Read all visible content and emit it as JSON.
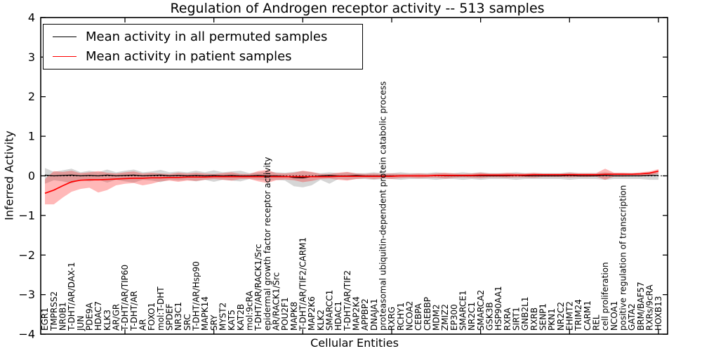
{
  "figure": {
    "title": "Regulation of Androgen receptor activity -- 513 samples",
    "xlabel": "Cellular Entities",
    "ylabel": "Inferred Activity"
  },
  "legend": {
    "position": "upper left",
    "entries": [
      {
        "label": "Mean activity in all permuted samples",
        "color": "#000000"
      },
      {
        "label": "Mean activity in patient samples",
        "color": "#ff0000"
      }
    ]
  },
  "chart_data": {
    "type": "line",
    "title": "Regulation of Androgen receptor activity -- 513 samples",
    "xlabel": "Cellular Entities",
    "ylabel": "Inferred Activity",
    "ylim": [
      -4,
      4
    ],
    "yticks": [
      -4,
      -3,
      -2,
      -1,
      0,
      1,
      2,
      3,
      4
    ],
    "xticks": [
      10,
      20,
      30,
      40,
      50,
      60,
      70
    ],
    "grid": false,
    "zero_line": {
      "style": "dotted",
      "color": "#000000",
      "y": 0
    },
    "legend_position": "upper left",
    "categories": [
      "EGR1",
      "TMPRSS2",
      "NR0B1",
      "T-DHT/AR/DAX-1",
      "JUN",
      "PDE9A",
      "HDAC7",
      "KLK3",
      "AR/GR",
      "T-DHT/AR/TIP60",
      "T-DHT/AR",
      "AR",
      "FOXO1",
      "mol:T-DHT",
      "SPDEF",
      "NR3C1",
      "SRC",
      "T-DHT/AR/Hsp90",
      "MAPK14",
      "SRY",
      "MYST2",
      "KAT5",
      "KAT2B",
      "mol:9cRA",
      "T-DHT/AR/RACK1/Src",
      "epidermal growth factor receptor activity",
      "AR/RACK1/Src",
      "POU2F1",
      "MAPK8",
      "T-DHT/AR/TIF2/CARM1",
      "MAP2K6",
      "KLK2",
      "SMARCC1",
      "HDAC1",
      "T-DHT/AR/TIF2",
      "MAP2K4",
      "APPBP2",
      "DNAJA1",
      "proteasomal ubiquitin-dependent protein catabolic process",
      "RXRG",
      "RCHY1",
      "NCOA2",
      "CEBPA",
      "CREBBP",
      "MDM2",
      "ZMIZ2",
      "EP300",
      "SMARCE1",
      "NR2C1",
      "SMARCA2",
      "GSK3B",
      "HSP90AA1",
      "RXRA",
      "SIRT1",
      "GNB2L1",
      "RXRB",
      "SENP1",
      "PKN1",
      "NR2C2",
      "EHMT2",
      "TRIM24",
      "CARM1",
      "REL",
      "cell proliferation",
      "NCOA1",
      "positive regulation of transcription",
      "GATA2",
      "BRM/BAF57",
      "RXRs/9cRA",
      "HOXB13"
    ],
    "series": [
      {
        "name": "Mean activity in all permuted samples",
        "color": "#000000",
        "line_width": 1.3,
        "band_color": "rgba(0,0,0,0.16)",
        "values": [
          0.02,
          0,
          0.01,
          0.02,
          0,
          0.01,
          0,
          0.02,
          0,
          0.01,
          0.02,
          0,
          0.01,
          0.02,
          0,
          0.01,
          0,
          0.01,
          0,
          0.01,
          0,
          0.01,
          0,
          0,
          0.01,
          0,
          0,
          -0.01,
          -0.04,
          -0.05,
          -0.02,
          0,
          0.01,
          0,
          0,
          0.01,
          0,
          0,
          0,
          0,
          0,
          0,
          0,
          0,
          0.01,
          0,
          0,
          0,
          0,
          0,
          0,
          0,
          0,
          0.01,
          0,
          0,
          0,
          0,
          0,
          0.01,
          0,
          0,
          0,
          0.01,
          0,
          0,
          0,
          0,
          0.01,
          0.01
        ],
        "band_upper": [
          0.2,
          0.1,
          0.14,
          0.18,
          0.09,
          0.13,
          0.09,
          0.16,
          0.09,
          0.13,
          0.16,
          0.09,
          0.11,
          0.15,
          0.09,
          0.11,
          0.09,
          0.13,
          0.09,
          0.14,
          0.09,
          0.11,
          0.13,
          0.07,
          0.09,
          0.11,
          0.09,
          0.08,
          0.1,
          0.12,
          0.09,
          0.07,
          0.09,
          0.07,
          0.09,
          0.07,
          0.07,
          0.09,
          0.07,
          0.07,
          0.09,
          0.07,
          0.07,
          0.07,
          0.09,
          0.07,
          0.07,
          0.09,
          0.07,
          0.09,
          0.07,
          0.07,
          0.07,
          0.09,
          0.07,
          0.07,
          0.07,
          0.07,
          0.07,
          0.09,
          0.07,
          0.07,
          0.07,
          0.09,
          0.07,
          0.07,
          0.07,
          0.07,
          0.09,
          0.09
        ],
        "band_lower": [
          -0.2,
          -0.11,
          -0.14,
          -0.19,
          -0.1,
          -0.14,
          -0.1,
          -0.17,
          -0.1,
          -0.14,
          -0.17,
          -0.1,
          -0.12,
          -0.16,
          -0.1,
          -0.12,
          -0.1,
          -0.14,
          -0.1,
          -0.15,
          -0.1,
          -0.12,
          -0.14,
          -0.08,
          -0.1,
          -0.12,
          -0.1,
          -0.12,
          -0.26,
          -0.29,
          -0.24,
          -0.1,
          -0.2,
          -0.08,
          -0.1,
          -0.08,
          -0.08,
          -0.1,
          -0.08,
          -0.08,
          -0.1,
          -0.08,
          -0.08,
          -0.08,
          -0.1,
          -0.08,
          -0.08,
          -0.1,
          -0.08,
          -0.1,
          -0.08,
          -0.08,
          -0.08,
          -0.1,
          -0.08,
          -0.08,
          -0.08,
          -0.08,
          -0.08,
          -0.1,
          -0.08,
          -0.08,
          -0.08,
          -0.1,
          -0.08,
          -0.08,
          -0.08,
          -0.08,
          -0.1,
          -0.1
        ]
      },
      {
        "name": "Mean activity in patient samples",
        "color": "#ff0000",
        "line_width": 1.7,
        "band_color": "rgba(255,0,0,0.28)",
        "values": [
          -0.44,
          -0.36,
          -0.25,
          -0.15,
          -0.11,
          -0.1,
          -0.1,
          -0.09,
          -0.08,
          -0.07,
          -0.06,
          -0.06,
          -0.05,
          -0.05,
          -0.04,
          -0.04,
          -0.03,
          -0.03,
          -0.03,
          -0.02,
          -0.02,
          -0.02,
          -0.02,
          -0.02,
          -0.02,
          -0.02,
          -0.02,
          -0.02,
          -0.02,
          -0.02,
          -0.02,
          -0.02,
          -0.02,
          -0.01,
          -0.01,
          -0.01,
          -0.01,
          -0.01,
          -0.01,
          -0.01,
          0,
          0,
          0,
          0,
          0.01,
          0.01,
          0.01,
          0.01,
          0.01,
          0.02,
          0.02,
          0.02,
          0.02,
          0.02,
          0.02,
          0.03,
          0.03,
          0.03,
          0.03,
          0.03,
          0.03,
          0.03,
          0.03,
          0.04,
          0.04,
          0.04,
          0.04,
          0.05,
          0.07,
          0.12
        ],
        "band_upper": [
          -0.08,
          0.12,
          0.1,
          0.13,
          0.07,
          0.09,
          0.12,
          0.08,
          0.06,
          0.09,
          0.11,
          0.06,
          0.08,
          0.06,
          0.05,
          0.08,
          0.06,
          0.08,
          0.06,
          0.05,
          0.07,
          0.09,
          0.05,
          0.05,
          0.12,
          0.15,
          0.07,
          0.06,
          0.08,
          0.13,
          0.1,
          0.05,
          0.05,
          0.08,
          0.1,
          0.06,
          0.05,
          0.06,
          0.05,
          0.06,
          0.05,
          0.05,
          0.06,
          0.05,
          0.06,
          0.08,
          0.06,
          0.05,
          0.06,
          0.08,
          0.06,
          0.06,
          0.08,
          0.06,
          0.06,
          0.08,
          0.06,
          0.06,
          0.06,
          0.08,
          0.07,
          0.07,
          0.07,
          0.18,
          0.08,
          0.08,
          0.07,
          0.09,
          0.11,
          0.17
        ],
        "band_lower": [
          -0.72,
          -0.72,
          -0.55,
          -0.4,
          -0.33,
          -0.3,
          -0.42,
          -0.36,
          -0.24,
          -0.2,
          -0.18,
          -0.24,
          -0.2,
          -0.14,
          -0.12,
          -0.15,
          -0.12,
          -0.13,
          -0.1,
          -0.08,
          -0.1,
          -0.12,
          -0.08,
          -0.08,
          -0.14,
          -0.18,
          -0.11,
          -0.09,
          -0.11,
          -0.16,
          -0.13,
          -0.08,
          -0.07,
          -0.1,
          -0.12,
          -0.08,
          -0.06,
          -0.08,
          -0.06,
          -0.08,
          -0.06,
          -0.05,
          -0.06,
          -0.05,
          -0.05,
          -0.07,
          -0.05,
          -0.04,
          -0.05,
          -0.06,
          -0.04,
          -0.04,
          -0.05,
          -0.04,
          -0.04,
          -0.05,
          -0.03,
          -0.03,
          -0.03,
          -0.04,
          -0.03,
          -0.03,
          -0.02,
          -0.1,
          -0.02,
          -0.02,
          -0.01,
          0.0,
          0.01,
          0.06
        ]
      }
    ]
  }
}
